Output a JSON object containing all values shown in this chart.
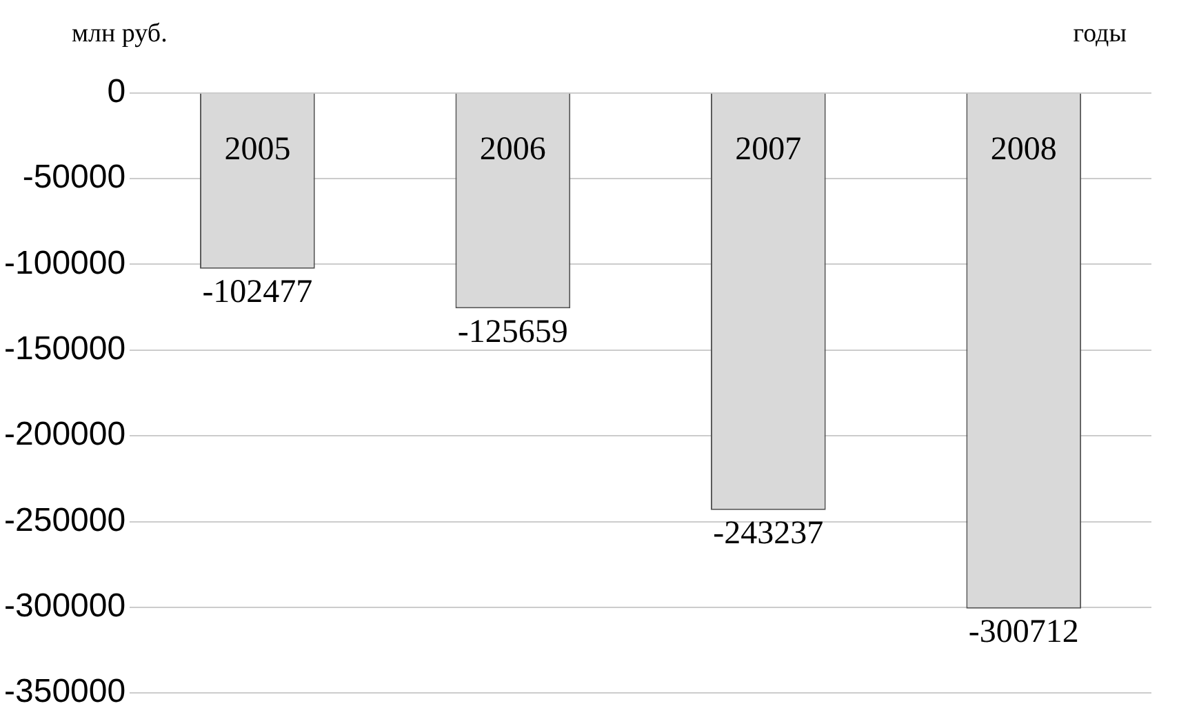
{
  "chart_data": {
    "type": "bar",
    "ylabel": "млн руб.",
    "xlabel": "годы",
    "categories": [
      "2005",
      "2006",
      "2007",
      "2008"
    ],
    "values": [
      -102477,
      -125659,
      -243237,
      -300712
    ],
    "color": "#d9d9d9",
    "ylim": [
      -350000,
      0
    ],
    "yticks": [
      -350000,
      -300000,
      -250000,
      -200000,
      -150000,
      -100000,
      -50000,
      0
    ],
    "grid": "y",
    "data_labels": true
  }
}
